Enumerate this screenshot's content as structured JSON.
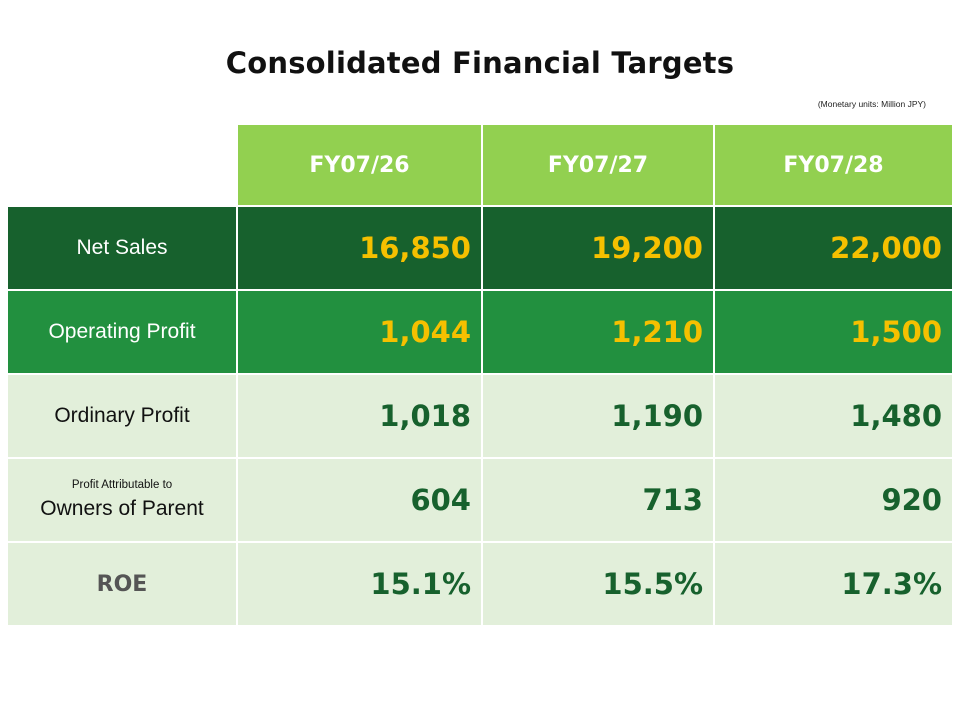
{
  "title": "Consolidated Financial Targets",
  "units_note": "(Monetary units: Million JPY)",
  "years": [
    "FY07/26",
    "FY07/27",
    "FY07/28"
  ],
  "rows": [
    {
      "label": "Net Sales",
      "values": [
        "16,850",
        "19,200",
        "22,000"
      ]
    },
    {
      "label": "Operating Profit",
      "values": [
        "1,044",
        "1,210",
        "1,500"
      ]
    },
    {
      "label": "Ordinary Profit",
      "values": [
        "1,018",
        "1,190",
        "1,480"
      ]
    },
    {
      "label_small": "Profit Attributable to",
      "label": "Owners of Parent",
      "values": [
        "604",
        "713",
        "920"
      ]
    },
    {
      "label": "ROE",
      "values": [
        "15.1%",
        "15.5%",
        "17.3%"
      ]
    }
  ],
  "colors": {
    "header_bg": "#92d050",
    "dark_row_bg": "#17612d",
    "mid_row_bg": "#22903f",
    "light_row_bg": "#e2efda",
    "highlight_value": "#f5c000",
    "dark_value": "#17612d"
  }
}
